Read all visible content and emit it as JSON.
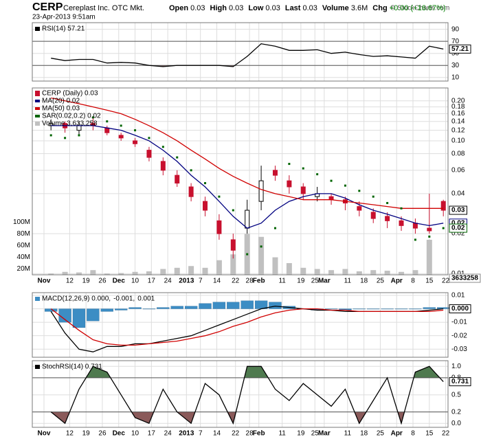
{
  "header": {
    "symbol": "CERP",
    "company": "Cereplast Inc. OTC Mkt.",
    "datetime": "23-Apr-2013 9:51am",
    "quote": [
      [
        "Open",
        "0.03"
      ],
      [
        "High",
        "0.03"
      ],
      [
        "Low",
        "0.03"
      ],
      [
        "Last",
        "0.03"
      ],
      [
        "Volume",
        "3.6M"
      ],
      [
        "Chg",
        "+0.00 (+16.67%)"
      ]
    ],
    "credit": "© StockCharts.com"
  },
  "x_axis": {
    "xlim": [
      0,
      178
    ],
    "x": [
      8,
      14,
      20,
      26,
      32,
      38,
      44,
      50,
      56,
      62,
      68,
      74,
      80,
      86,
      92,
      98,
      104,
      110,
      116,
      122,
      128,
      134,
      140,
      146,
      152,
      158,
      164,
      170,
      176
    ],
    "xticks": [
      {
        "value": 5,
        "label": "Nov"
      },
      {
        "value": 16,
        "label": "12"
      },
      {
        "value": 23,
        "label": "19"
      },
      {
        "value": 30,
        "label": "26"
      },
      {
        "value": 37,
        "label": "Dec"
      },
      {
        "value": 44,
        "label": "10"
      },
      {
        "value": 51,
        "label": "17"
      },
      {
        "value": 58,
        "label": "24"
      },
      {
        "value": 66,
        "label": "2013"
      },
      {
        "value": 72,
        "label": "7"
      },
      {
        "value": 79,
        "label": "14"
      },
      {
        "value": 87,
        "label": "22"
      },
      {
        "value": 93,
        "label": "28"
      },
      {
        "value": 97,
        "label": "Feb"
      },
      {
        "value": 107,
        "label": "11"
      },
      {
        "value": 115,
        "label": "19"
      },
      {
        "value": 121,
        "label": "25"
      },
      {
        "value": 125,
        "label": "Mar"
      },
      {
        "value": 135,
        "label": "11"
      },
      {
        "value": 142,
        "label": "18"
      },
      {
        "value": 149,
        "label": "25"
      },
      {
        "value": 156,
        "label": "Apr"
      },
      {
        "value": 163,
        "label": "8"
      },
      {
        "value": 170,
        "label": "15"
      },
      {
        "value": 177,
        "label": "22"
      }
    ]
  },
  "chart_data": [
    {
      "type": "line",
      "ylim": [
        4,
        101
      ],
      "yticks": [
        90,
        70,
        50,
        30,
        10
      ],
      "grid": true,
      "bands": {
        "upper": 70,
        "lower": 30,
        "upper_color": "#4f7a4f",
        "lower_color": "#8a5a5a"
      },
      "series": [
        {
          "name": "RSI(14) 57.21",
          "color": "#000000",
          "style": "line",
          "last_label": "57.21",
          "values": [
            42,
            38,
            40,
            40,
            34,
            35,
            34,
            30,
            28,
            30,
            30,
            30,
            30,
            28,
            45,
            66,
            62,
            55,
            55,
            56,
            50,
            52,
            48,
            45,
            46,
            44,
            42,
            62,
            57.21
          ]
        }
      ]
    },
    {
      "type": "candlestick",
      "name": "CERP (Daily) 0.03",
      "log_scale": true,
      "grid": true,
      "show_x_labels": true,
      "ylim": [
        0.0098,
        0.25
      ],
      "yticks": [
        {
          "value": 0.2,
          "label": "0.20"
        },
        0.18,
        0.16,
        0.14,
        0.12,
        {
          "value": 0.1,
          "label": "0.10"
        },
        0.08,
        0.06,
        0.04,
        0.02,
        0.01
      ],
      "up_color": "#ffffff",
      "down_color": "#c8102e",
      "last_label": "0.03",
      "open": [
        0.13,
        0.135,
        0.12,
        0.135,
        0.125,
        0.11,
        0.1,
        0.085,
        0.07,
        0.055,
        0.045,
        0.035,
        0.025,
        0.018,
        0.022,
        0.035,
        0.06,
        0.05,
        0.045,
        0.038,
        0.038,
        0.036,
        0.032,
        0.029,
        0.027,
        0.025,
        0.024,
        0.022,
        0.035
      ],
      "high": [
        0.145,
        0.14,
        0.14,
        0.15,
        0.13,
        0.115,
        0.105,
        0.09,
        0.075,
        0.06,
        0.048,
        0.038,
        0.028,
        0.02,
        0.036,
        0.065,
        0.065,
        0.055,
        0.048,
        0.045,
        0.04,
        0.038,
        0.035,
        0.031,
        0.029,
        0.027,
        0.026,
        0.04,
        0.036
      ],
      "low": [
        0.12,
        0.115,
        0.11,
        0.12,
        0.11,
        0.1,
        0.09,
        0.07,
        0.055,
        0.045,
        0.035,
        0.027,
        0.018,
        0.013,
        0.02,
        0.03,
        0.05,
        0.04,
        0.036,
        0.035,
        0.033,
        0.03,
        0.027,
        0.024,
        0.022,
        0.021,
        0.02,
        0.02,
        0.027
      ],
      "close": [
        0.135,
        0.125,
        0.13,
        0.13,
        0.115,
        0.105,
        0.095,
        0.075,
        0.06,
        0.048,
        0.038,
        0.03,
        0.02,
        0.015,
        0.03,
        0.05,
        0.055,
        0.045,
        0.04,
        0.04,
        0.036,
        0.034,
        0.03,
        0.026,
        0.025,
        0.023,
        0.022,
        0.021,
        0.03
      ],
      "series": [
        {
          "name": "MA(20) 0.02",
          "color": "#000080",
          "style": "line",
          "last_label": "0.02",
          "values": [
            0.13,
            0.13,
            0.13,
            0.13,
            0.125,
            0.12,
            0.11,
            0.1,
            0.085,
            0.07,
            0.055,
            0.045,
            0.035,
            0.027,
            0.022,
            0.024,
            0.03,
            0.035,
            0.038,
            0.04,
            0.04,
            0.037,
            0.033,
            0.03,
            0.028,
            0.026,
            0.024,
            0.023,
            0.024
          ]
        },
        {
          "name": "MA(50) 0.03",
          "color": "#d00000",
          "style": "line",
          "values": [
            0.21,
            0.2,
            0.19,
            0.18,
            0.17,
            0.16,
            0.145,
            0.13,
            0.115,
            0.1,
            0.085,
            0.073,
            0.062,
            0.054,
            0.048,
            0.043,
            0.04,
            0.038,
            0.036,
            0.036,
            0.036,
            0.035,
            0.034,
            0.033,
            0.032,
            0.031,
            0.031,
            0.031,
            0.031
          ]
        },
        {
          "name": "SAR(0.02,0.2) 0.02",
          "color": "#006400",
          "style": "dots",
          "last_label": "0.02",
          "values": [
            0.11,
            0.105,
            0.11,
            0.15,
            0.14,
            0.13,
            0.12,
            0.105,
            0.09,
            0.075,
            0.06,
            0.048,
            0.038,
            0.03,
            0.014,
            0.016,
            0.022,
            0.067,
            0.062,
            0.056,
            0.05,
            0.046,
            0.042,
            0.038,
            0.034,
            0.031,
            0.018,
            0.019,
            0.022
          ]
        }
      ],
      "volume": {
        "name": "Volume 3,633,258",
        "color": "#c0c0c0",
        "last_label": "3633258",
        "y2lim": [
          10000000,
          330000000
        ],
        "y2ticks": [
          {
            "value": 100000000,
            "label": "100M"
          },
          {
            "value": 80000000,
            "label": "80M"
          },
          {
            "value": 60000000,
            "label": "60M"
          },
          {
            "value": 40000000,
            "label": "40M"
          },
          {
            "value": 20000000,
            "label": "20M"
          }
        ],
        "values": [
          12000000,
          15000000,
          14000000,
          18000000,
          12000000,
          13000000,
          15000000,
          16000000,
          20000000,
          22000000,
          25000000,
          22000000,
          35000000,
          45000000,
          80000000,
          75000000,
          40000000,
          30000000,
          22000000,
          20000000,
          18000000,
          20000000,
          16000000,
          18000000,
          17000000,
          15000000,
          18000000,
          70000000,
          3633258
        ]
      }
    },
    {
      "type": "line",
      "ylim": [
        -0.036,
        0.012
      ],
      "grid": true,
      "yticks": [
        0.01,
        {
          "value": 0,
          "label": "0.00"
        },
        -0.01,
        -0.02,
        -0.03
      ],
      "series": [
        {
          "name": "0.001",
          "color": "#3c8dc4",
          "style": "bar",
          "values": [
            -0.002,
            -0.01,
            -0.014,
            -0.009,
            -0.002,
            -0.001,
            0.001,
            0,
            0.001,
            0.002,
            0.002,
            0.004,
            0.005,
            0.005,
            0.006,
            0.006,
            0.005,
            0.002,
            0,
            -0.001,
            0,
            -0.001,
            0,
            0,
            0,
            0,
            0,
            0.001,
            0.001
          ]
        },
        {
          "name": "MACD(12,26,9) 0.000,",
          "color": "#000000",
          "style": "line",
          "last_label": "0.000",
          "values": [
            -0.002,
            -0.018,
            -0.03,
            -0.032,
            -0.028,
            -0.028,
            -0.026,
            -0.026,
            -0.024,
            -0.022,
            -0.02,
            -0.016,
            -0.012,
            -0.008,
            -0.004,
            0,
            0.002,
            0.001,
            0,
            -0.001,
            -0.001,
            -0.002,
            -0.002,
            -0.002,
            -0.002,
            -0.002,
            -0.002,
            -0.001,
            0
          ]
        },
        {
          "name": "-0.001,",
          "color": "#d00000",
          "style": "line",
          "values": [
            0,
            -0.008,
            -0.016,
            -0.023,
            -0.026,
            -0.027,
            -0.027,
            -0.026,
            -0.025,
            -0.024,
            -0.022,
            -0.02,
            -0.017,
            -0.013,
            -0.01,
            -0.006,
            -0.003,
            -0.001,
            0,
            0,
            -0.001,
            -0.001,
            -0.002,
            -0.002,
            -0.002,
            -0.002,
            -0.002,
            -0.002,
            -0.001
          ]
        }
      ],
      "legend_order": [
        1,
        2,
        0
      ]
    },
    {
      "type": "line",
      "ylim": [
        -0.07,
        1.1
      ],
      "grid": true,
      "show_x_labels": true,
      "yticks": [
        {
          "value": 1,
          "label": "1.0"
        },
        0.8,
        0.5,
        0.2,
        {
          "value": 0,
          "label": "0.0"
        }
      ],
      "bands": {
        "upper": 0.8,
        "lower": 0.2,
        "upper_color": "#4f7a4f",
        "lower_color": "#8a5a5a"
      },
      "series": [
        {
          "name": "StochRSI(14) 0.731",
          "color": "#000000",
          "style": "line",
          "last_label": "0.731",
          "values": [
            0.2,
            0,
            0.6,
            1,
            0.9,
            0.5,
            0.1,
            0,
            0.6,
            0.2,
            0,
            0.7,
            0.5,
            0,
            1,
            1,
            0.6,
            0.4,
            0.7,
            0.5,
            0.3,
            0.6,
            0,
            0.4,
            0.8,
            0,
            0.9,
            1,
            0.731
          ]
        }
      ]
    }
  ]
}
